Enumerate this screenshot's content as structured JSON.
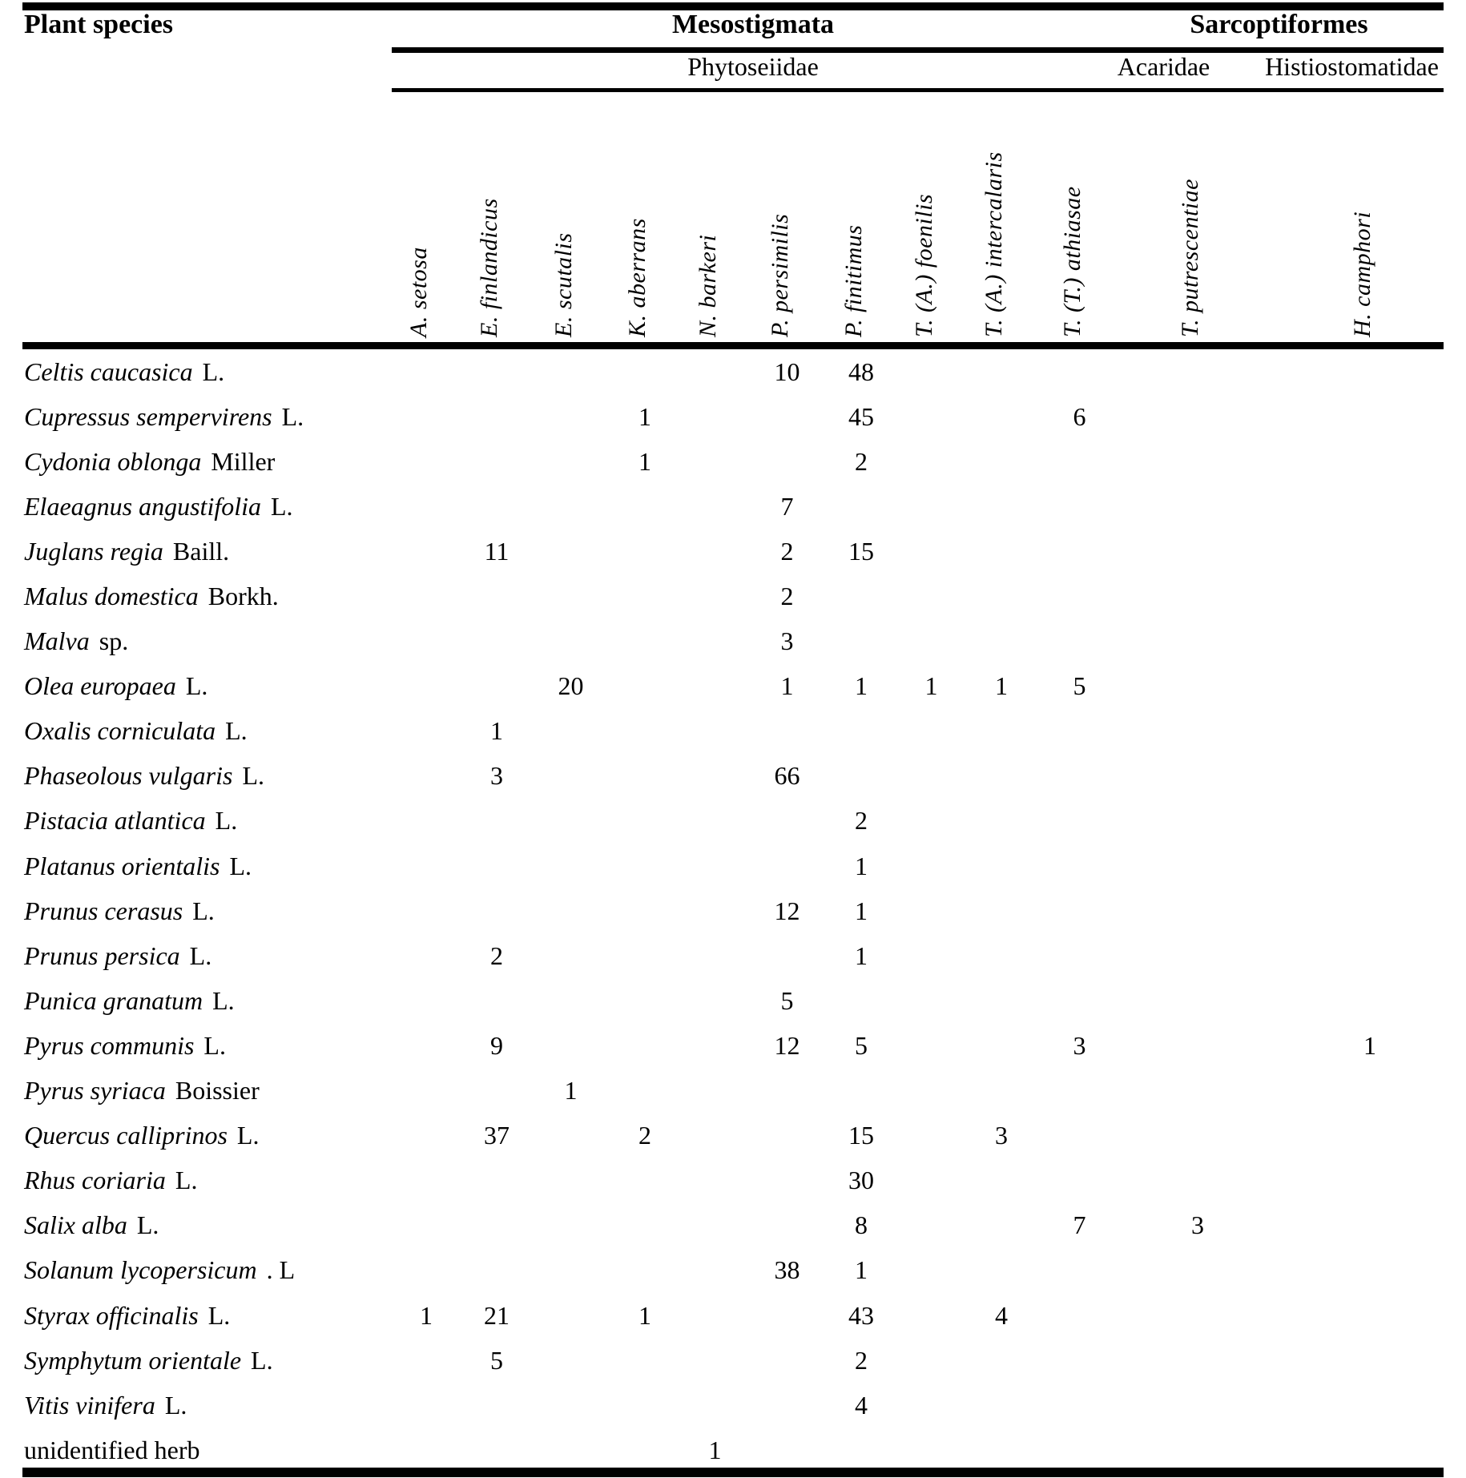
{
  "table": {
    "corner_header": "Plant species",
    "order_headers": [
      {
        "label": "Mesostigmata"
      },
      {
        "label": "Sarcoptiformes"
      }
    ],
    "family_headers": [
      {
        "label": "Phytoseiidae"
      },
      {
        "label": "Acaridae"
      },
      {
        "label": "Histiostomatidae"
      }
    ],
    "mite_columns": [
      "A. setosa",
      "E. finlandicus",
      "E. scutalis",
      "K. aberrans",
      "N. barkeri",
      "P. persimilis",
      "P. finitimus",
      "T. (A.) foenilis",
      "T. (A.) intercalaris",
      "T. (T.) athiasae",
      "T. putrescentiae",
      "H. camphori"
    ],
    "text_color": "#000000",
    "background_color": "#ffffff",
    "rows": [
      {
        "species": "Celtis caucasica",
        "authority": "L.",
        "values": [
          "",
          "",
          "",
          "",
          "",
          "10",
          "48",
          "",
          "",
          "",
          "",
          ""
        ]
      },
      {
        "species": "Cupressus sempervirens",
        "authority": "L.",
        "values": [
          "",
          "",
          "",
          "1",
          "",
          "",
          "45",
          "",
          "",
          "6",
          "",
          ""
        ]
      },
      {
        "species": "Cydonia oblonga",
        "authority": "Miller",
        "values": [
          "",
          "",
          "",
          "1",
          "",
          "",
          "2",
          "",
          "",
          "",
          "",
          ""
        ]
      },
      {
        "species": "Elaeagnus angustifolia",
        "authority": "L.",
        "values": [
          "",
          "",
          "",
          "",
          "",
          "7",
          "",
          "",
          "",
          "",
          "",
          ""
        ]
      },
      {
        "species": "Juglans regia",
        "authority": "Baill.",
        "values": [
          "",
          "11",
          "",
          "",
          "",
          "2",
          "15",
          "",
          "",
          "",
          "",
          ""
        ]
      },
      {
        "species": "Malus domestica",
        "authority": "Borkh.",
        "values": [
          "",
          "",
          "",
          "",
          "",
          "2",
          "",
          "",
          "",
          "",
          "",
          ""
        ]
      },
      {
        "species": "Malva",
        "authority": "sp.",
        "values": [
          "",
          "",
          "",
          "",
          "",
          "3",
          "",
          "",
          "",
          "",
          "",
          ""
        ]
      },
      {
        "species": "Olea europaea",
        "authority": "L.",
        "values": [
          "",
          "",
          "20",
          "",
          "",
          "1",
          "1",
          "1",
          "1",
          "5",
          "",
          ""
        ]
      },
      {
        "species": "Oxalis corniculata",
        "authority": "L.",
        "values": [
          "",
          "1",
          "",
          "",
          "",
          "",
          "",
          "",
          "",
          "",
          "",
          ""
        ]
      },
      {
        "species": "Phaseolous vulgaris",
        "authority": "L.",
        "values": [
          "",
          "3",
          "",
          "",
          "",
          "66",
          "",
          "",
          "",
          "",
          "",
          ""
        ]
      },
      {
        "species": "Pistacia atlantica",
        "authority": "L.",
        "values": [
          "",
          "",
          "",
          "",
          "",
          "",
          "2",
          "",
          "",
          "",
          "",
          ""
        ]
      },
      {
        "species": "Platanus orientalis",
        "authority": "L.",
        "values": [
          "",
          "",
          "",
          "",
          "",
          "",
          "1",
          "",
          "",
          "",
          "",
          ""
        ]
      },
      {
        "species": "Prunus cerasus",
        "authority": "L.",
        "values": [
          "",
          "",
          "",
          "",
          "",
          "12",
          "1",
          "",
          "",
          "",
          "",
          ""
        ]
      },
      {
        "species": "Prunus persica",
        "authority": "L.",
        "values": [
          "",
          "2",
          "",
          "",
          "",
          "",
          "1",
          "",
          "",
          "",
          "",
          ""
        ]
      },
      {
        "species": "Punica granatum",
        "authority": "L.",
        "values": [
          "",
          "",
          "",
          "",
          "",
          "5",
          "",
          "",
          "",
          "",
          "",
          ""
        ]
      },
      {
        "species": "Pyrus communis",
        "authority": "L.",
        "values": [
          "",
          "9",
          "",
          "",
          "",
          "12",
          "5",
          "",
          "",
          "3",
          "",
          "1"
        ]
      },
      {
        "species": "Pyrus syriaca",
        "authority": "Boissier",
        "values": [
          "",
          "",
          "1",
          "",
          "",
          "",
          "",
          "",
          "",
          "",
          "",
          ""
        ]
      },
      {
        "species": "Quercus calliprinos",
        "authority": "L.",
        "values": [
          "",
          "37",
          "",
          "2",
          "",
          "",
          "15",
          "",
          "3",
          "",
          "",
          ""
        ]
      },
      {
        "species": "Rhus coriaria",
        "authority": "L.",
        "values": [
          "",
          "",
          "",
          "",
          "",
          "",
          "30",
          "",
          "",
          "",
          "",
          ""
        ]
      },
      {
        "species": "Salix alba",
        "authority": "L.",
        "values": [
          "",
          "",
          "",
          "",
          "",
          "",
          "8",
          "",
          "",
          "7",
          "3",
          ""
        ]
      },
      {
        "species": "Solanum lycopersicum",
        "authority": ". L",
        "values": [
          "",
          "",
          "",
          "",
          "",
          "38",
          "1",
          "",
          "",
          "",
          "",
          ""
        ]
      },
      {
        "species": "Styrax officinalis",
        "authority": "L.",
        "values": [
          "1",
          "21",
          "",
          "1",
          "",
          "",
          "43",
          "",
          "4",
          "",
          "",
          ""
        ]
      },
      {
        "species": "Symphytum orientale",
        "authority": "L.",
        "values": [
          "",
          "5",
          "",
          "",
          "",
          "",
          "2",
          "",
          "",
          "",
          "",
          ""
        ]
      },
      {
        "species": "Vitis vinifera",
        "authority": "L.",
        "values": [
          "",
          "",
          "",
          "",
          "",
          "",
          "4",
          "",
          "",
          "",
          "",
          ""
        ]
      },
      {
        "species": "unidentified herb",
        "authority": "",
        "roman": true,
        "values": [
          "",
          "",
          "",
          "",
          "1",
          "",
          "",
          "",
          "",
          "",
          "",
          ""
        ]
      }
    ]
  }
}
